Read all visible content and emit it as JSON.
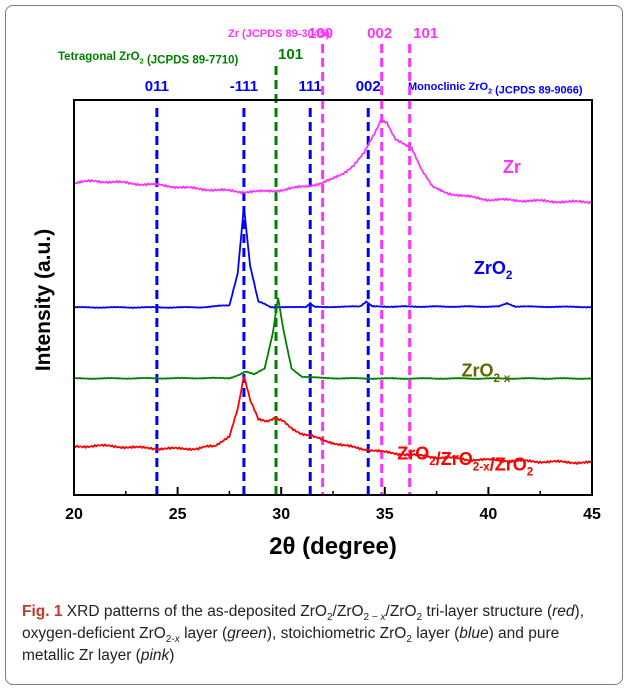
{
  "chart_data": {
    "type": "line",
    "xlabel": "2θ (degree)",
    "ylabel": "Intensity (a.u.)",
    "xlim": [
      20,
      45
    ],
    "xticks": [
      "20",
      "25",
      "30",
      "35",
      "40",
      "45"
    ],
    "grid": false,
    "series": [
      {
        "name": "Zr",
        "color": "#ff33ff",
        "x": [
          20,
          21,
          22,
          23,
          24,
          25,
          26,
          27,
          28,
          29,
          30,
          31,
          32,
          32.5,
          33,
          33.5,
          34,
          34.5,
          34.8,
          35.1,
          35.5,
          35.9,
          36.3,
          36.8,
          37.3,
          38,
          39,
          40,
          42,
          44,
          45
        ],
        "y": [
          0.79,
          0.795,
          0.792,
          0.788,
          0.785,
          0.78,
          0.775,
          0.772,
          0.768,
          0.768,
          0.772,
          0.78,
          0.79,
          0.8,
          0.815,
          0.835,
          0.865,
          0.915,
          0.95,
          0.94,
          0.9,
          0.89,
          0.88,
          0.82,
          0.78,
          0.765,
          0.755,
          0.748,
          0.745,
          0.742,
          0.742
        ]
      },
      {
        "name": "ZrO2",
        "color": "#0000ff",
        "x": [
          20,
          26,
          27.5,
          27.9,
          28.2,
          28.5,
          28.9,
          29.5,
          30.5,
          31.2,
          31.4,
          31.6,
          33.8,
          34.1,
          34.4,
          40.5,
          40.9,
          41.3,
          45
        ],
        "y": [
          0.475,
          0.475,
          0.48,
          0.56,
          0.73,
          0.58,
          0.49,
          0.476,
          0.475,
          0.476,
          0.485,
          0.476,
          0.477,
          0.49,
          0.477,
          0.477,
          0.485,
          0.477,
          0.476
        ]
      },
      {
        "name": "ZrO2-x",
        "color": "#008000",
        "x": [
          20,
          27.5,
          28,
          28.3,
          28.7,
          29.2,
          29.6,
          29.85,
          30.1,
          30.5,
          31,
          32,
          34,
          45
        ],
        "y": [
          0.295,
          0.296,
          0.305,
          0.312,
          0.305,
          0.32,
          0.41,
          0.5,
          0.42,
          0.32,
          0.3,
          0.296,
          0.295,
          0.295
        ]
      },
      {
        "name": "ZrO2/ZrO2-x/ZrO2",
        "color": "#ff0000",
        "x": [
          20,
          21,
          22,
          23,
          24,
          25,
          26,
          26.8,
          27.5,
          27.9,
          28.2,
          28.5,
          28.9,
          29.3,
          29.7,
          30.1,
          30.5,
          31,
          32,
          33,
          35,
          37,
          39,
          41,
          43,
          45
        ],
        "y": [
          0.122,
          0.125,
          0.123,
          0.12,
          0.118,
          0.117,
          0.118,
          0.125,
          0.15,
          0.22,
          0.3,
          0.24,
          0.19,
          0.185,
          0.195,
          0.19,
          0.17,
          0.155,
          0.14,
          0.125,
          0.108,
          0.098,
          0.09,
          0.087,
          0.084,
          0.082
        ]
      }
    ],
    "series_labels": [
      {
        "text": "Zr",
        "sub": "",
        "color": "#ff33ff",
        "x": 40.7,
        "y": 0.815
      },
      {
        "text": "ZrO",
        "sub": "2",
        "color": "#0000ff",
        "x": 39.3,
        "y": 0.56
      },
      {
        "text": "ZrO",
        "sub": "2-x",
        "color": "#666600",
        "x": 38.7,
        "y": 0.3
      },
      {
        "text": "ZrO2/ZrO2-x/ZrO2",
        "sub": "",
        "color": "#ff0000",
        "x": 35.6,
        "y": 0.09
      }
    ],
    "reference_lines": [
      {
        "x": 24.0,
        "color": "#0000ff",
        "label": "011",
        "row": "blue"
      },
      {
        "x": 28.2,
        "color": "#0000ff",
        "label": "-111",
        "row": "blue"
      },
      {
        "x": 31.4,
        "color": "#0000ff",
        "label": "111",
        "row": "blue"
      },
      {
        "x": 34.2,
        "color": "#0000ff",
        "label": "002",
        "row": "blue"
      },
      {
        "x": 29.75,
        "color": "#008000",
        "label": "101",
        "row": "green"
      },
      {
        "x": 32.0,
        "color": "#ff33ff",
        "label": "100",
        "row": "pink"
      },
      {
        "x": 34.85,
        "color": "#ff33ff",
        "label": "002",
        "row": "pink"
      },
      {
        "x": 36.2,
        "color": "#ff33ff",
        "label": "101",
        "row": "pink"
      }
    ],
    "phase_labels": [
      {
        "text": "Zr (JCPDS 89-3045)",
        "color": "#ff33ff"
      },
      {
        "text": "Tetragonal ZrO2 (JCPDS 89-7710)",
        "color": "#008000"
      },
      {
        "text": "Monoclinic ZrO2 (JCPDS 89-9066)",
        "color": "#0000ff"
      }
    ]
  },
  "caption": {
    "fig_label": "Fig. 1",
    "text": "XRD patterns of the as-deposited ZrO2/ZrO2 − x/ZrO2 tri-layer structure (red), oxygen-deficient ZrO2-x layer (green), stoichiometric ZrO2 layer (blue) and pure metallic Zr layer (pink)"
  }
}
